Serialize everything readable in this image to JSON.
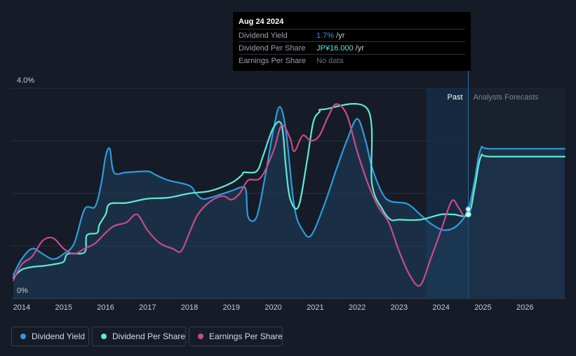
{
  "tooltip": {
    "date": "Aug 24 2024",
    "rows": [
      {
        "label": "Dividend Yield",
        "value": "1.7%",
        "unit": " /yr",
        "color": "#2d9cdb"
      },
      {
        "label": "Dividend Per Share",
        "value": "JP¥16.000",
        "unit": " /yr",
        "color": "#5eead4"
      },
      {
        "label": "Earnings Per Share",
        "value": "No data",
        "unit": "",
        "color": "#6b7280"
      }
    ]
  },
  "colors": {
    "background": "#151b27",
    "dividend_yield": "#2d9cdb",
    "dividend_per_share": "#5eead4",
    "earnings_per_share": "#c84b8b",
    "forecast_band": "#15304a"
  },
  "legend": [
    {
      "label": "Dividend Yield",
      "color": "#2d9cdb"
    },
    {
      "label": "Dividend Per Share",
      "color": "#5eead4"
    },
    {
      "label": "Earnings Per Share",
      "color": "#c84b8b"
    }
  ],
  "chart_data": {
    "type": "line",
    "y_top_label": "4.0%",
    "y_bottom_label": "0%",
    "ylim": [
      0,
      4.0
    ],
    "xlim": [
      2013.75,
      2026.95
    ],
    "x_ticks": [
      2014,
      2015,
      2016,
      2017,
      2018,
      2019,
      2020,
      2021,
      2022,
      2023,
      2024,
      2025,
      2026
    ],
    "past_label": "Past",
    "forecast_label": "Analysts Forecasts",
    "past_band_start": 2023.65,
    "today": 2024.65,
    "grid": true,
    "series": [
      {
        "name": "Dividend Yield",
        "key": "dividend_yield",
        "fill": true,
        "points": [
          [
            2013.8,
            0.45
          ],
          [
            2014.0,
            0.75
          ],
          [
            2014.25,
            0.95
          ],
          [
            2014.5,
            0.85
          ],
          [
            2014.75,
            0.75
          ],
          [
            2015.0,
            0.85
          ],
          [
            2015.25,
            1.05
          ],
          [
            2015.5,
            1.7
          ],
          [
            2015.75,
            1.75
          ],
          [
            2015.9,
            2.2
          ],
          [
            2016.0,
            2.7
          ],
          [
            2016.1,
            2.85
          ],
          [
            2016.2,
            2.4
          ],
          [
            2016.5,
            2.4
          ],
          [
            2017.0,
            2.42
          ],
          [
            2017.2,
            2.35
          ],
          [
            2017.5,
            2.25
          ],
          [
            2018.0,
            2.15
          ],
          [
            2018.15,
            2.0
          ],
          [
            2018.3,
            1.9
          ],
          [
            2018.5,
            1.92
          ],
          [
            2019.0,
            2.05
          ],
          [
            2019.25,
            2.12
          ],
          [
            2019.35,
            2.05
          ],
          [
            2019.4,
            1.55
          ],
          [
            2019.6,
            1.55
          ],
          [
            2019.8,
            2.3
          ],
          [
            2020.0,
            3.2
          ],
          [
            2020.15,
            3.65
          ],
          [
            2020.3,
            3.2
          ],
          [
            2020.5,
            1.75
          ],
          [
            2020.7,
            1.3
          ],
          [
            2020.9,
            1.2
          ],
          [
            2021.2,
            1.75
          ],
          [
            2021.5,
            2.45
          ],
          [
            2021.75,
            3.0
          ],
          [
            2022.0,
            3.42
          ],
          [
            2022.2,
            3.0
          ],
          [
            2022.35,
            2.5
          ],
          [
            2022.6,
            2.0
          ],
          [
            2022.8,
            1.85
          ],
          [
            2023.2,
            1.8
          ],
          [
            2023.5,
            1.6
          ],
          [
            2023.8,
            1.4
          ],
          [
            2024.1,
            1.3
          ],
          [
            2024.4,
            1.4
          ],
          [
            2024.65,
            1.7
          ],
          [
            2024.8,
            2.25
          ],
          [
            2024.95,
            2.85
          ],
          [
            2025.2,
            2.85
          ],
          [
            2026.95,
            2.85
          ]
        ]
      },
      {
        "name": "Dividend Per Share",
        "key": "dividend_per_share",
        "fill": false,
        "points": [
          [
            2013.8,
            0.4
          ],
          [
            2014.0,
            0.55
          ],
          [
            2014.25,
            0.6
          ],
          [
            2014.5,
            0.62
          ],
          [
            2014.75,
            0.65
          ],
          [
            2015.0,
            0.7
          ],
          [
            2015.1,
            0.85
          ],
          [
            2015.5,
            0.88
          ],
          [
            2015.55,
            1.2
          ],
          [
            2015.8,
            1.25
          ],
          [
            2015.85,
            1.4
          ],
          [
            2016.0,
            1.6
          ],
          [
            2016.1,
            1.8
          ],
          [
            2016.5,
            1.82
          ],
          [
            2017.0,
            1.9
          ],
          [
            2017.5,
            1.92
          ],
          [
            2018.0,
            2.0
          ],
          [
            2018.5,
            2.05
          ],
          [
            2019.0,
            2.2
          ],
          [
            2019.25,
            2.35
          ],
          [
            2019.3,
            2.4
          ],
          [
            2019.6,
            2.42
          ],
          [
            2019.75,
            2.7
          ],
          [
            2020.0,
            3.25
          ],
          [
            2020.2,
            3.3
          ],
          [
            2020.3,
            2.5
          ],
          [
            2020.4,
            1.9
          ],
          [
            2020.6,
            1.75
          ],
          [
            2020.8,
            2.6
          ],
          [
            2020.95,
            3.35
          ],
          [
            2021.1,
            3.55
          ],
          [
            2021.2,
            3.6
          ],
          [
            2022.25,
            3.6
          ],
          [
            2022.35,
            2.2
          ],
          [
            2022.6,
            1.7
          ],
          [
            2022.8,
            1.5
          ],
          [
            2023.0,
            1.5
          ],
          [
            2023.5,
            1.5
          ],
          [
            2024.0,
            1.6
          ],
          [
            2024.3,
            1.6
          ],
          [
            2024.65,
            1.6
          ],
          [
            2024.8,
            2.1
          ],
          [
            2024.95,
            2.7
          ],
          [
            2025.2,
            2.7
          ],
          [
            2026.95,
            2.7
          ]
        ]
      },
      {
        "name": "Earnings Per Share",
        "key": "earnings_per_share",
        "fill": false,
        "points": [
          [
            2013.8,
            0.35
          ],
          [
            2014.0,
            0.65
          ],
          [
            2014.25,
            0.8
          ],
          [
            2014.5,
            1.1
          ],
          [
            2014.75,
            1.15
          ],
          [
            2015.0,
            0.95
          ],
          [
            2015.25,
            0.85
          ],
          [
            2015.5,
            0.95
          ],
          [
            2015.75,
            1.05
          ],
          [
            2016.0,
            1.25
          ],
          [
            2016.2,
            1.38
          ],
          [
            2016.5,
            1.45
          ],
          [
            2016.75,
            1.6
          ],
          [
            2017.0,
            1.3
          ],
          [
            2017.3,
            1.05
          ],
          [
            2017.6,
            0.95
          ],
          [
            2017.8,
            0.9
          ],
          [
            2018.0,
            1.25
          ],
          [
            2018.2,
            1.6
          ],
          [
            2018.5,
            1.85
          ],
          [
            2018.8,
            1.95
          ],
          [
            2019.0,
            1.88
          ],
          [
            2019.2,
            2.0
          ],
          [
            2019.4,
            2.25
          ],
          [
            2019.7,
            2.3
          ],
          [
            2020.0,
            2.8
          ],
          [
            2020.2,
            3.3
          ],
          [
            2020.4,
            3.05
          ],
          [
            2020.5,
            2.8
          ],
          [
            2020.7,
            3.1
          ],
          [
            2020.9,
            3.0
          ],
          [
            2021.1,
            3.1
          ],
          [
            2021.3,
            3.45
          ],
          [
            2021.5,
            3.7
          ],
          [
            2021.75,
            3.5
          ],
          [
            2022.0,
            2.8
          ],
          [
            2022.25,
            2.2
          ],
          [
            2022.5,
            1.75
          ],
          [
            2022.75,
            1.45
          ],
          [
            2023.0,
            0.9
          ],
          [
            2023.25,
            0.45
          ],
          [
            2023.5,
            0.25
          ],
          [
            2023.75,
            0.75
          ],
          [
            2024.0,
            1.3
          ],
          [
            2024.25,
            1.85
          ],
          [
            2024.4,
            1.75
          ],
          [
            2024.55,
            1.55
          ]
        ]
      }
    ],
    "end_markers": [
      {
        "key": "dividend_yield",
        "x": 2024.65,
        "y": 1.7
      },
      {
        "key": "dividend_per_share",
        "x": 2024.65,
        "y": 1.6
      }
    ]
  }
}
